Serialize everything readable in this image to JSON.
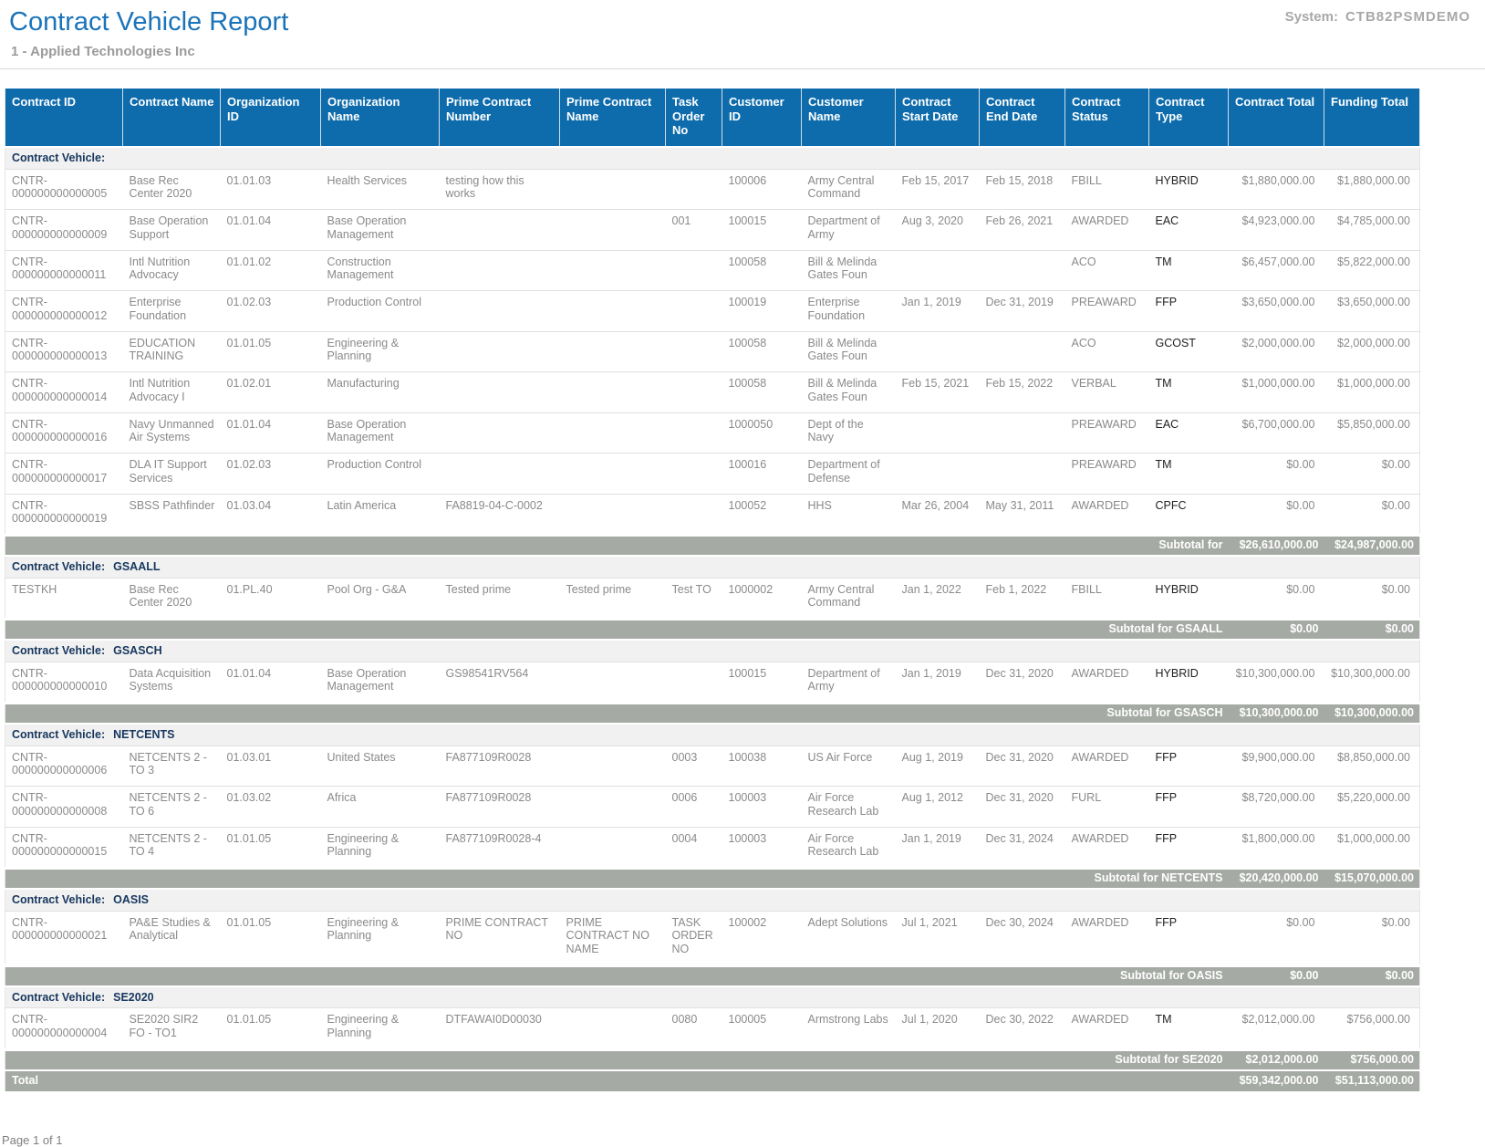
{
  "page": {
    "title": "Contract Vehicle Report",
    "subtitle": "1 - Applied Technologies Inc",
    "system_label": "System:",
    "system_value": "CTB82PSMDEMO",
    "footer": "Page 1 of 1"
  },
  "colors": {
    "title_blue": "#1a73b9",
    "header_bg": "#0e6cac",
    "subtotal_bg": "#a6aaa5",
    "group_text": "#17375e",
    "row_text": "#8a8a8a",
    "type_text": "#1f1f1f"
  },
  "table": {
    "group_label_prefix": "Contract Vehicle:",
    "columns": [
      {
        "key": "contract_id",
        "label": "Contract ID",
        "align": "left"
      },
      {
        "key": "contract_name",
        "label": "Contract Name",
        "align": "left"
      },
      {
        "key": "organization_id",
        "label": "Organization ID",
        "align": "left"
      },
      {
        "key": "organization_name",
        "label": "Organization Name",
        "align": "left"
      },
      {
        "key": "prime_contract_number",
        "label": "Prime Contract Number",
        "align": "left"
      },
      {
        "key": "prime_contract_name",
        "label": "Prime Contract Name",
        "align": "left"
      },
      {
        "key": "task_order_no",
        "label": "Task Order No",
        "align": "left"
      },
      {
        "key": "customer_id",
        "label": "Customer ID",
        "align": "left"
      },
      {
        "key": "customer_name",
        "label": "Customer Name",
        "align": "left"
      },
      {
        "key": "contract_start_date",
        "label": "Contract Start Date",
        "align": "left"
      },
      {
        "key": "contract_end_date",
        "label": "Contract End Date",
        "align": "left"
      },
      {
        "key": "contract_status",
        "label": "Contract Status",
        "align": "left"
      },
      {
        "key": "contract_type",
        "label": "Contract Type",
        "align": "left"
      },
      {
        "key": "contract_total",
        "label": "Contract Total",
        "align": "right"
      },
      {
        "key": "funding_total",
        "label": "Funding Total",
        "align": "right"
      }
    ],
    "groups": [
      {
        "vehicle": "",
        "subtotal_label": "Subtotal for",
        "subtotal_contract_total": "$26,610,000.00",
        "subtotal_funding_total": "$24,987,000.00",
        "rows": [
          {
            "contract_id": "CNTR-000000000000005",
            "contract_name": "Base Rec Center 2020",
            "organization_id": "01.01.03",
            "organization_name": "Health Services",
            "prime_contract_number": "testing how this works",
            "customer_id": "100006",
            "customer_name": "Army Central Command",
            "contract_start_date": "Feb 15, 2017",
            "contract_end_date": "Feb 15, 2018",
            "contract_status": "FBILL",
            "contract_type": "HYBRID",
            "contract_total": "$1,880,000.00",
            "funding_total": "$1,880,000.00"
          },
          {
            "contract_id": "CNTR-000000000000009",
            "contract_name": "Base Operation Support",
            "organization_id": "01.01.04",
            "organization_name": "Base Operation Management",
            "task_order_no": "001",
            "customer_id": "100015",
            "customer_name": "Department of Army",
            "contract_start_date": "Aug 3, 2020",
            "contract_end_date": "Feb 26, 2021",
            "contract_status": "AWARDED",
            "contract_type": "EAC",
            "contract_total": "$4,923,000.00",
            "funding_total": "$4,785,000.00"
          },
          {
            "contract_id": "CNTR-000000000000011",
            "contract_name": "Intl Nutrition Advocacy",
            "organization_id": "01.01.02",
            "organization_name": "Construction Management",
            "customer_id": "100058",
            "customer_name": "Bill & Melinda Gates Foun",
            "contract_status": "ACO",
            "contract_type": "TM",
            "contract_total": "$6,457,000.00",
            "funding_total": "$5,822,000.00"
          },
          {
            "contract_id": "CNTR-000000000000012",
            "contract_name": "Enterprise Foundation",
            "organization_id": "01.02.03",
            "organization_name": "Production Control",
            "customer_id": "100019",
            "customer_name": "Enterprise Foundation",
            "contract_start_date": "Jan 1, 2019",
            "contract_end_date": "Dec 31, 2019",
            "contract_status": "PREAWARD",
            "contract_type": "FFP",
            "contract_total": "$3,650,000.00",
            "funding_total": "$3,650,000.00"
          },
          {
            "contract_id": "CNTR-000000000000013",
            "contract_name": "EDUCATION TRAINING",
            "organization_id": "01.01.05",
            "organization_name": "Engineering & Planning",
            "customer_id": "100058",
            "customer_name": "Bill & Melinda Gates Foun",
            "contract_status": "ACO",
            "contract_type": "GCOST",
            "contract_total": "$2,000,000.00",
            "funding_total": "$2,000,000.00"
          },
          {
            "contract_id": "CNTR-000000000000014",
            "contract_name": "Intl Nutrition Advocacy I",
            "organization_id": "01.02.01",
            "organization_name": "Manufacturing",
            "customer_id": "100058",
            "customer_name": "Bill & Melinda Gates Foun",
            "contract_start_date": "Feb 15, 2021",
            "contract_end_date": "Feb 15, 2022",
            "contract_status": "VERBAL",
            "contract_type": "TM",
            "contract_total": "$1,000,000.00",
            "funding_total": "$1,000,000.00"
          },
          {
            "contract_id": "CNTR-000000000000016",
            "contract_name": "Navy Unmanned Air Systems",
            "organization_id": "01.01.04",
            "organization_name": "Base Operation Management",
            "customer_id": "1000050",
            "customer_name": "Dept of the Navy",
            "contract_status": "PREAWARD",
            "contract_type": "EAC",
            "contract_total": "$6,700,000.00",
            "funding_total": "$5,850,000.00"
          },
          {
            "contract_id": "CNTR-000000000000017",
            "contract_name": "DLA IT Support Services",
            "organization_id": "01.02.03",
            "organization_name": "Production Control",
            "customer_id": "100016",
            "customer_name": "Department of Defense",
            "contract_status": "PREAWARD",
            "contract_type": "TM",
            "contract_total": "$0.00",
            "funding_total": "$0.00"
          },
          {
            "contract_id": "CNTR-000000000000019",
            "contract_name": "SBSS Pathfinder",
            "organization_id": "01.03.04",
            "organization_name": "Latin America",
            "prime_contract_number": "FA8819-04-C-0002",
            "customer_id": "100052",
            "customer_name": "HHS",
            "contract_start_date": "Mar 26, 2004",
            "contract_end_date": "May 31, 2011",
            "contract_status": "AWARDED",
            "contract_type": "CPFC",
            "contract_total": "$0.00",
            "funding_total": "$0.00"
          }
        ]
      },
      {
        "vehicle": "GSAALL",
        "subtotal_label": "Subtotal for GSAALL",
        "subtotal_contract_total": "$0.00",
        "subtotal_funding_total": "$0.00",
        "rows": [
          {
            "contract_id": "TESTKH",
            "contract_name": "Base Rec Center 2020",
            "organization_id": "01.PL.40",
            "organization_name": "Pool Org - G&A",
            "prime_contract_number": "Tested prime",
            "prime_contract_name": "Tested prime",
            "task_order_no": "Test TO",
            "customer_id": "1000002",
            "customer_name": "Army Central Command",
            "contract_start_date": "Jan 1, 2022",
            "contract_end_date": "Feb 1, 2022",
            "contract_status": "FBILL",
            "contract_type": "HYBRID",
            "contract_total": "$0.00",
            "funding_total": "$0.00"
          }
        ]
      },
      {
        "vehicle": "GSASCH",
        "subtotal_label": "Subtotal for GSASCH",
        "subtotal_contract_total": "$10,300,000.00",
        "subtotal_funding_total": "$10,300,000.00",
        "rows": [
          {
            "contract_id": "CNTR-000000000000010",
            "contract_name": "Data Acquisition Systems",
            "organization_id": "01.01.04",
            "organization_name": "Base Operation Management",
            "prime_contract_number": "GS98541RV564",
            "customer_id": "100015",
            "customer_name": "Department of Army",
            "contract_start_date": "Jan 1, 2019",
            "contract_end_date": "Dec 31, 2020",
            "contract_status": "AWARDED",
            "contract_type": "HYBRID",
            "contract_total": "$10,300,000.00",
            "funding_total": "$10,300,000.00"
          }
        ]
      },
      {
        "vehicle": "NETCENTS",
        "subtotal_label": "Subtotal for NETCENTS",
        "subtotal_contract_total": "$20,420,000.00",
        "subtotal_funding_total": "$15,070,000.00",
        "rows": [
          {
            "contract_id": "CNTR-000000000000006",
            "contract_name": "NETCENTS 2 - TO 3",
            "organization_id": "01.03.01",
            "organization_name": "United States",
            "prime_contract_number": "FA877109R0028",
            "task_order_no": "0003",
            "customer_id": "100038",
            "customer_name": "US Air Force",
            "contract_start_date": "Aug 1, 2019",
            "contract_end_date": "Dec 31, 2020",
            "contract_status": "AWARDED",
            "contract_type": "FFP",
            "contract_total": "$9,900,000.00",
            "funding_total": "$8,850,000.00"
          },
          {
            "contract_id": "CNTR-000000000000008",
            "contract_name": "NETCENTS 2 - TO 6",
            "organization_id": "01.03.02",
            "organization_name": "Africa",
            "prime_contract_number": "FA877109R0028",
            "task_order_no": "0006",
            "customer_id": "100003",
            "customer_name": "Air Force Research Lab",
            "contract_start_date": "Aug 1, 2012",
            "contract_end_date": "Dec 31, 2020",
            "contract_status": "FURL",
            "contract_type": "FFP",
            "contract_total": "$8,720,000.00",
            "funding_total": "$5,220,000.00"
          },
          {
            "contract_id": "CNTR-000000000000015",
            "contract_name": "NETCENTS 2 - TO 4",
            "organization_id": "01.01.05",
            "organization_name": "Engineering & Planning",
            "prime_contract_number": "FA877109R0028-4",
            "task_order_no": "0004",
            "customer_id": "100003",
            "customer_name": "Air Force Research Lab",
            "contract_start_date": "Jan 1, 2019",
            "contract_end_date": "Dec 31, 2024",
            "contract_status": "AWARDED",
            "contract_type": "FFP",
            "contract_total": "$1,800,000.00",
            "funding_total": "$1,000,000.00"
          }
        ]
      },
      {
        "vehicle": "OASIS",
        "subtotal_label": "Subtotal for OASIS",
        "subtotal_contract_total": "$0.00",
        "subtotal_funding_total": "$0.00",
        "rows": [
          {
            "contract_id": "CNTR-000000000000021",
            "contract_name": "PA&E Studies & Analytical",
            "organization_id": "01.01.05",
            "organization_name": "Engineering & Planning",
            "prime_contract_number": "PRIME CONTRACT NO",
            "prime_contract_name": "PRIME CONTRACT NO NAME",
            "task_order_no": "TASK ORDER NO",
            "customer_id": "100002",
            "customer_name": "Adept Solutions",
            "contract_start_date": "Jul 1, 2021",
            "contract_end_date": "Dec 30, 2024",
            "contract_status": "AWARDED",
            "contract_type": "FFP",
            "contract_total": "$0.00",
            "funding_total": "$0.00"
          }
        ]
      },
      {
        "vehicle": "SE2020",
        "subtotal_label": "Subtotal for SE2020",
        "subtotal_contract_total": "$2,012,000.00",
        "subtotal_funding_total": "$756,000.00",
        "rows": [
          {
            "contract_id": "CNTR-000000000000004",
            "contract_name": "SE2020 SIR2 FO - TO1",
            "organization_id": "01.01.05",
            "organization_name": "Engineering & Planning",
            "prime_contract_number": "DTFAWAI0D00030",
            "task_order_no": "0080",
            "customer_id": "100005",
            "customer_name": "Armstrong Labs",
            "contract_start_date": "Jul 1, 2020",
            "contract_end_date": "Dec 30, 2022",
            "contract_status": "AWARDED",
            "contract_type": "TM",
            "contract_total": "$2,012,000.00",
            "funding_total": "$756,000.00"
          }
        ]
      }
    ],
    "total": {
      "label": "Total",
      "contract_total": "$59,342,000.00",
      "funding_total": "$51,113,000.00"
    }
  }
}
